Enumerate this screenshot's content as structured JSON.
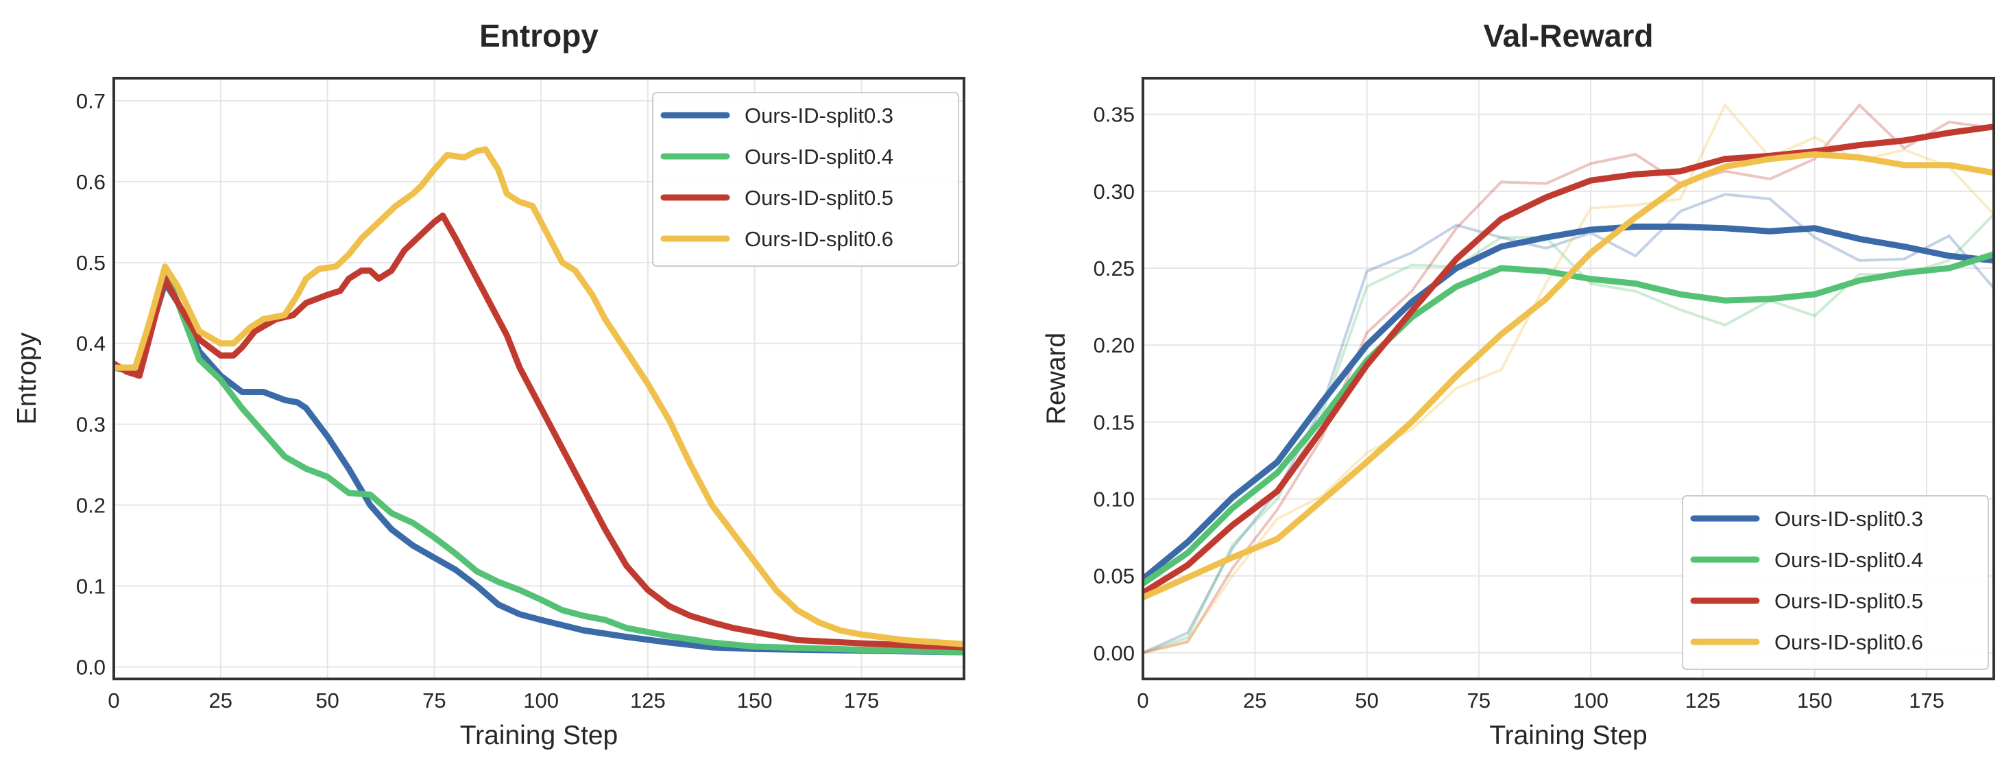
{
  "colors": {
    "Ours-ID-split0.3": "#3b6aa8",
    "Ours-ID-split0.4": "#55c175",
    "Ours-ID-split0.5": "#c13a2f",
    "Ours-ID-split0.6": "#f0c04c"
  },
  "chart_data": [
    {
      "type": "line",
      "title": "Entropy",
      "xlabel": "Training Step",
      "ylabel": "Entropy",
      "xlim": [
        0,
        199
      ],
      "ylim": [
        -0.015,
        0.728
      ],
      "xticks": [
        0,
        25,
        50,
        75,
        100,
        125,
        150,
        175
      ],
      "yticks": [
        0.0,
        0.1,
        0.2,
        0.3,
        0.4,
        0.5,
        0.6,
        0.7
      ],
      "ytick_labels": [
        "0.0",
        "0.1",
        "0.2",
        "0.3",
        "0.4",
        "0.5",
        "0.6",
        "0.7"
      ],
      "grid": true,
      "legend": "top-right",
      "series": [
        {
          "name": "Ours-ID-split0.3",
          "x": [
            0,
            5,
            10,
            12,
            15,
            20,
            25,
            30,
            35,
            40,
            43,
            45,
            50,
            55,
            60,
            65,
            70,
            75,
            80,
            85,
            90,
            95,
            100,
            110,
            120,
            130,
            140,
            150,
            175,
            199
          ],
          "y": [
            0.37,
            0.365,
            0.44,
            0.475,
            0.45,
            0.39,
            0.36,
            0.34,
            0.34,
            0.33,
            0.327,
            0.32,
            0.285,
            0.245,
            0.2,
            0.17,
            0.15,
            0.135,
            0.12,
            0.1,
            0.077,
            0.065,
            0.058,
            0.045,
            0.037,
            0.03,
            0.024,
            0.022,
            0.02,
            0.018
          ]
        },
        {
          "name": "Ours-ID-split0.4",
          "x": [
            0,
            5,
            10,
            12,
            15,
            20,
            25,
            30,
            35,
            40,
            45,
            50,
            55,
            60,
            65,
            70,
            75,
            80,
            85,
            90,
            95,
            100,
            105,
            110,
            115,
            120,
            130,
            140,
            150,
            175,
            199
          ],
          "y": [
            0.37,
            0.37,
            0.45,
            0.49,
            0.45,
            0.38,
            0.355,
            0.32,
            0.29,
            0.26,
            0.245,
            0.235,
            0.215,
            0.213,
            0.19,
            0.178,
            0.16,
            0.14,
            0.118,
            0.105,
            0.095,
            0.083,
            0.07,
            0.063,
            0.058,
            0.048,
            0.038,
            0.03,
            0.025,
            0.021,
            0.018
          ]
        },
        {
          "name": "Ours-ID-split0.5",
          "x": [
            0,
            3,
            6,
            9,
            12,
            15,
            20,
            25,
            28,
            30,
            33,
            38,
            42,
            45,
            50,
            53,
            55,
            58,
            60,
            62,
            65,
            68,
            72,
            75,
            77,
            80,
            85,
            90,
            92,
            95,
            100,
            105,
            110,
            115,
            120,
            125,
            130,
            135,
            140,
            145,
            150,
            155,
            160,
            175,
            199
          ],
          "y": [
            0.375,
            0.365,
            0.36,
            0.42,
            0.48,
            0.45,
            0.405,
            0.385,
            0.385,
            0.395,
            0.415,
            0.43,
            0.435,
            0.45,
            0.46,
            0.465,
            0.48,
            0.49,
            0.49,
            0.48,
            0.49,
            0.515,
            0.535,
            0.55,
            0.558,
            0.53,
            0.48,
            0.43,
            0.41,
            0.37,
            0.32,
            0.27,
            0.22,
            0.17,
            0.125,
            0.095,
            0.075,
            0.063,
            0.055,
            0.048,
            0.043,
            0.038,
            0.033,
            0.029,
            0.024
          ]
        },
        {
          "name": "Ours-ID-split0.6",
          "x": [
            0,
            5,
            8,
            12,
            15,
            20,
            25,
            28,
            32,
            35,
            40,
            43,
            45,
            48,
            52,
            55,
            58,
            62,
            66,
            70,
            72,
            75,
            78,
            82,
            85,
            87,
            90,
            92,
            95,
            98,
            100,
            105,
            108,
            112,
            115,
            120,
            125,
            130,
            135,
            140,
            145,
            150,
            155,
            160,
            165,
            170,
            175,
            185,
            199
          ],
          "y": [
            0.37,
            0.37,
            0.42,
            0.495,
            0.47,
            0.415,
            0.4,
            0.4,
            0.42,
            0.43,
            0.435,
            0.46,
            0.48,
            0.492,
            0.495,
            0.51,
            0.53,
            0.55,
            0.57,
            0.585,
            0.595,
            0.615,
            0.633,
            0.63,
            0.638,
            0.64,
            0.615,
            0.585,
            0.575,
            0.57,
            0.55,
            0.5,
            0.49,
            0.46,
            0.43,
            0.39,
            0.35,
            0.305,
            0.25,
            0.2,
            0.165,
            0.13,
            0.095,
            0.07,
            0.055,
            0.045,
            0.04,
            0.033,
            0.028
          ]
        }
      ]
    },
    {
      "type": "line",
      "title": "Val-Reward",
      "xlabel": "Training Step",
      "ylabel": "Reward",
      "xlim": [
        0,
        190
      ],
      "ylim": [
        -0.017,
        0.3735
      ],
      "xticks": [
        0,
        25,
        50,
        75,
        100,
        125,
        150,
        175
      ],
      "yticks": [
        0.0,
        0.05,
        0.1,
        0.15,
        0.2,
        0.25,
        0.3,
        0.35
      ],
      "ytick_labels": [
        "0.00",
        "0.05",
        "0.10",
        "0.15",
        "0.20",
        "0.25",
        "0.30",
        "0.35"
      ],
      "grid": true,
      "legend": "bottom-right",
      "x": [
        0,
        10,
        20,
        30,
        40,
        50,
        60,
        70,
        80,
        90,
        100,
        110,
        120,
        130,
        140,
        150,
        160,
        170,
        180,
        190
      ],
      "series": [
        {
          "name": "Ours-ID-split0.3",
          "raw": [
            0,
            0.013,
            0.068,
            0.105,
            0.16,
            0.248,
            0.26,
            0.278,
            0.27,
            0.263,
            0.273,
            0.258,
            0.287,
            0.298,
            0.295,
            0.27,
            0.255,
            0.256,
            0.271,
            0.237
          ],
          "smoothed": [
            0.048,
            0.072,
            0.101,
            0.124,
            0.163,
            0.2,
            0.228,
            0.25,
            0.264,
            0.27,
            0.275,
            0.277,
            0.277,
            0.276,
            0.274,
            0.276,
            0.269,
            0.264,
            0.258,
            0.255
          ]
        },
        {
          "name": "Ours-ID-split0.4",
          "raw": [
            0,
            0.01,
            0.07,
            0.1,
            0.155,
            0.238,
            0.252,
            0.251,
            0.27,
            0.27,
            0.24,
            0.235,
            0.223,
            0.213,
            0.229,
            0.219,
            0.246,
            0.246,
            0.255,
            0.285
          ],
          "smoothed": [
            0.045,
            0.065,
            0.094,
            0.117,
            0.152,
            0.19,
            0.218,
            0.238,
            0.25,
            0.248,
            0.243,
            0.24,
            0.233,
            0.229,
            0.23,
            0.233,
            0.242,
            0.247,
            0.25,
            0.259
          ]
        },
        {
          "name": "Ours-ID-split0.5",
          "raw": [
            0,
            0.007,
            0.055,
            0.093,
            0.14,
            0.208,
            0.235,
            0.276,
            0.306,
            0.305,
            0.318,
            0.324,
            0.305,
            0.313,
            0.308,
            0.321,
            0.356,
            0.328,
            0.345,
            0.341
          ],
          "smoothed": [
            0.039,
            0.057,
            0.083,
            0.105,
            0.145,
            0.187,
            0.222,
            0.256,
            0.282,
            0.296,
            0.307,
            0.311,
            0.313,
            0.321,
            0.323,
            0.326,
            0.33,
            0.333,
            0.338,
            0.342
          ]
        },
        {
          "name": "Ours-ID-split0.6",
          "raw": [
            0,
            0.008,
            0.05,
            0.087,
            0.102,
            0.13,
            0.145,
            0.172,
            0.184,
            0.24,
            0.289,
            0.291,
            0.295,
            0.356,
            0.322,
            0.335,
            0.32,
            0.327,
            0.316,
            0.285
          ],
          "smoothed": [
            0.036,
            0.049,
            0.062,
            0.074,
            0.099,
            0.124,
            0.15,
            0.18,
            0.207,
            0.23,
            0.26,
            0.283,
            0.304,
            0.316,
            0.321,
            0.324,
            0.322,
            0.317,
            0.317,
            0.312
          ]
        }
      ]
    }
  ]
}
